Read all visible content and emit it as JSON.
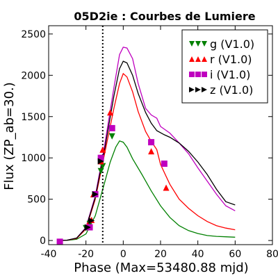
{
  "chart_data": {
    "type": "scatter",
    "title": "05D2ie : Courbes de Lumiere",
    "xlabel": "Phase (Max=53480.88 mjd)",
    "ylabel": "Flux (ZP_ab=30.)",
    "xlim": [
      -40,
      80
    ],
    "ylim": [
      -50,
      2600
    ],
    "x_ticks": [
      -40,
      -20,
      0,
      20,
      40,
      60,
      80
    ],
    "x_tick_labels": [
      "-40",
      "-20",
      "0",
      "20",
      "40",
      "60",
      "80"
    ],
    "y_ticks": [
      0,
      500,
      1000,
      1500,
      2000,
      2500
    ],
    "y_tick_labels": [
      "0",
      "500",
      "1000",
      "1500",
      "2000",
      "2500"
    ],
    "vline_x": -11,
    "legend_position": "top-right",
    "grid": false,
    "series": [
      {
        "name": "g (V1.0)",
        "color": "#008000",
        "marker": "triangle-down",
        "points": [
          [
            -20,
            150
          ],
          [
            -18,
            200
          ],
          [
            -15,
            540
          ],
          [
            -12,
            840
          ],
          [
            -11,
            900
          ],
          [
            -6,
            1260
          ]
        ],
        "model": [
          [
            -35,
            0
          ],
          [
            -30,
            2
          ],
          [
            -25,
            15
          ],
          [
            -20,
            80
          ],
          [
            -15,
            300
          ],
          [
            -10,
            700
          ],
          [
            -7,
            950
          ],
          [
            -4,
            1130
          ],
          [
            -2,
            1205
          ],
          [
            0,
            1190
          ],
          [
            2,
            1130
          ],
          [
            5,
            990
          ],
          [
            10,
            800
          ],
          [
            15,
            600
          ],
          [
            20,
            420
          ],
          [
            25,
            280
          ],
          [
            30,
            180
          ],
          [
            35,
            120
          ],
          [
            40,
            85
          ],
          [
            45,
            60
          ],
          [
            50,
            50
          ],
          [
            55,
            45
          ],
          [
            60,
            40
          ]
        ]
      },
      {
        "name": "r (V1.0)",
        "color": "#ff0000",
        "marker": "triangle-up",
        "points": [
          [
            -19,
            190
          ],
          [
            -17,
            250
          ],
          [
            -16,
            560
          ],
          [
            -12,
            960
          ],
          [
            -11,
            1100
          ],
          [
            -7,
            1550
          ],
          [
            15,
            1080
          ],
          [
            23,
            640
          ]
        ],
        "model": [
          [
            -35,
            0
          ],
          [
            -30,
            5
          ],
          [
            -25,
            25
          ],
          [
            -20,
            140
          ],
          [
            -15,
            500
          ],
          [
            -10,
            1050
          ],
          [
            -5,
            1600
          ],
          [
            -2,
            1900
          ],
          [
            0,
            2020
          ],
          [
            2,
            1980
          ],
          [
            5,
            1800
          ],
          [
            8,
            1560
          ],
          [
            12,
            1320
          ],
          [
            15,
            1200
          ],
          [
            18,
            1100
          ],
          [
            20,
            920
          ],
          [
            25,
            680
          ],
          [
            30,
            500
          ],
          [
            35,
            390
          ],
          [
            40,
            300
          ],
          [
            45,
            230
          ],
          [
            50,
            180
          ],
          [
            55,
            150
          ],
          [
            60,
            130
          ]
        ]
      },
      {
        "name": "i (V1.0)",
        "color": "#bf00bf",
        "marker": "square",
        "points": [
          [
            -34,
            -15
          ],
          [
            -18,
            160
          ],
          [
            -15,
            560
          ],
          [
            -12,
            1000
          ],
          [
            -6,
            1360
          ],
          [
            15,
            1190
          ],
          [
            22,
            930
          ]
        ],
        "model": [
          [
            -35,
            0
          ],
          [
            -30,
            5
          ],
          [
            -25,
            30
          ],
          [
            -20,
            160
          ],
          [
            -15,
            540
          ],
          [
            -10,
            1150
          ],
          [
            -5,
            1850
          ],
          [
            -2,
            2250
          ],
          [
            0,
            2340
          ],
          [
            2,
            2330
          ],
          [
            5,
            2200
          ],
          [
            8,
            1900
          ],
          [
            12,
            1600
          ],
          [
            15,
            1520
          ],
          [
            18,
            1480
          ],
          [
            20,
            1380
          ],
          [
            25,
            1300
          ],
          [
            30,
            1180
          ],
          [
            35,
            1050
          ],
          [
            40,
            880
          ],
          [
            45,
            720
          ],
          [
            50,
            560
          ],
          [
            55,
            420
          ],
          [
            60,
            360
          ]
        ]
      },
      {
        "name": "z (V1.0)",
        "color": "#000000",
        "marker": "triangle-right",
        "points": [
          [
            -19,
            160
          ],
          [
            -17,
            240
          ],
          [
            -15,
            560
          ],
          [
            -12,
            960
          ]
        ],
        "model": [
          [
            -35,
            0
          ],
          [
            -30,
            5
          ],
          [
            -25,
            30
          ],
          [
            -20,
            150
          ],
          [
            -15,
            520
          ],
          [
            -10,
            1100
          ],
          [
            -5,
            1750
          ],
          [
            -2,
            2080
          ],
          [
            0,
            2170
          ],
          [
            2,
            2150
          ],
          [
            5,
            2000
          ],
          [
            8,
            1780
          ],
          [
            12,
            1550
          ],
          [
            15,
            1420
          ],
          [
            18,
            1330
          ],
          [
            22,
            1280
          ],
          [
            25,
            1250
          ],
          [
            30,
            1180
          ],
          [
            35,
            1080
          ],
          [
            40,
            950
          ],
          [
            45,
            800
          ],
          [
            50,
            620
          ],
          [
            55,
            470
          ],
          [
            60,
            430
          ]
        ]
      }
    ]
  }
}
